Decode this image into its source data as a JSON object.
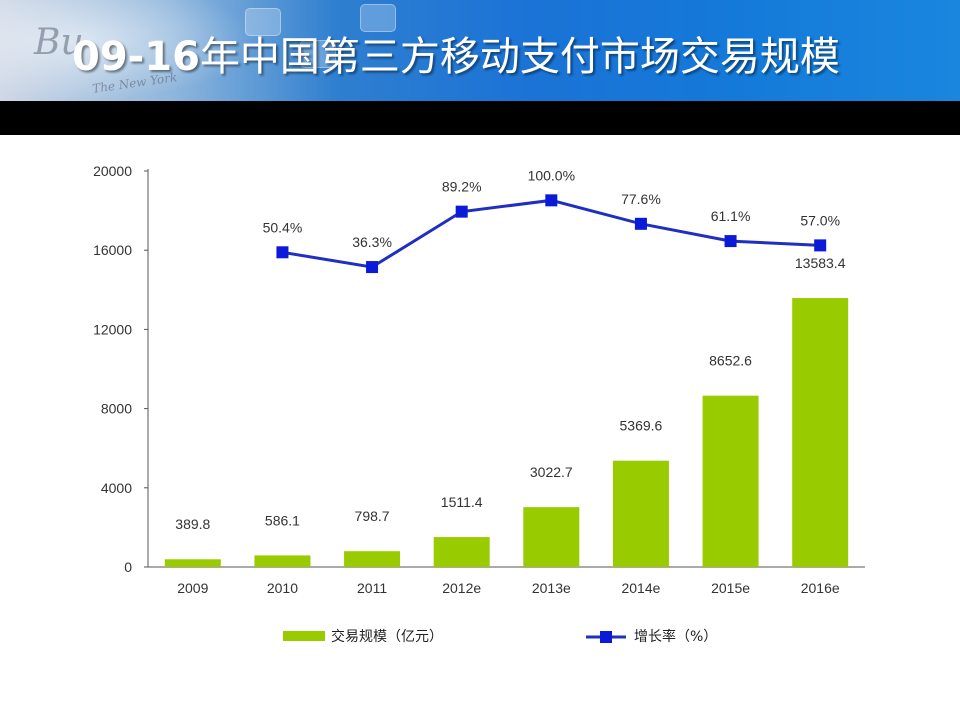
{
  "slide": {
    "title_year": "09-16",
    "title_rest": "年中国第三方移动支付市场交易规模",
    "bg_word": "Bu",
    "bg_word2": "The New York"
  },
  "colors": {
    "bar": "#99cc00",
    "line": "#1f2fbf",
    "marker": "#0a1ad6"
  },
  "chart_data": {
    "type": "bar+line",
    "categories": [
      "2009",
      "2010",
      "2011",
      "2012e",
      "2013e",
      "2014e",
      "2015e",
      "2016e"
    ],
    "series": [
      {
        "name": "交易规模（亿元）",
        "type": "bar",
        "values": [
          389.8,
          586.1,
          798.7,
          1511.4,
          3022.7,
          5369.6,
          8652.6,
          13583.4
        ],
        "labels": [
          "389.8",
          "586.1",
          "798.7",
          "1511.4",
          "3022.7",
          "5369.6",
          "8652.6",
          "13583.4"
        ]
      },
      {
        "name": "增长率（%）",
        "type": "line",
        "values": [
          null,
          50.4,
          36.3,
          89.2,
          100.0,
          77.6,
          61.1,
          57.0
        ],
        "labels": [
          "",
          "50.4%",
          "36.3%",
          "89.2%",
          "100.0%",
          "77.6%",
          "61.1%",
          "57.0%"
        ]
      }
    ],
    "y_ticks": [
      "0",
      "4000",
      "8000",
      "12000",
      "16000",
      "20000"
    ],
    "ylim": [
      0,
      20000
    ],
    "line_ylim": [
      -250,
      128
    ],
    "title": "",
    "xlabel": "",
    "ylabel": "",
    "legend": "bottom"
  }
}
